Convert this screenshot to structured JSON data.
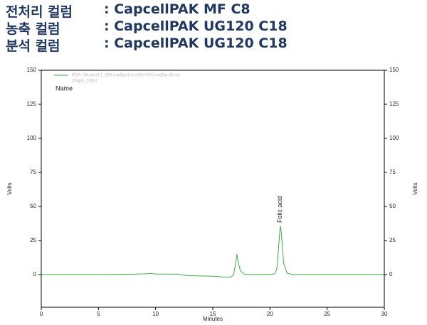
{
  "header": {
    "lines": [
      {
        "label": "전처리 컬럼",
        "value": ": CapcellPAK MF C8"
      },
      {
        "label": "농축 컬럼",
        "value": ": CapcellPAK UG120 C18"
      },
      {
        "label": "분석 컬럼",
        "value": ": CapcellPAK UG120 C18"
      }
    ]
  },
  "chart_data": {
    "type": "line",
    "xlabel": "Minutes",
    "ylabel": "Volts",
    "y2label": "Volts",
    "sample_label": "20ppb_160uL",
    "name_label": "Name",
    "annotations": [
      {
        "text": "Folic acid",
        "x": 20.9,
        "y": 38
      }
    ],
    "x": [
      0,
      2,
      4,
      6,
      8,
      9,
      9.5,
      10,
      12,
      12.5,
      13,
      14,
      15,
      15.5,
      16,
      16.5,
      16.8,
      17.0,
      17.1,
      17.2,
      17.4,
      17.7,
      18,
      19,
      20,
      20.4,
      20.6,
      20.8,
      20.9,
      21.0,
      21.2,
      21.5,
      22,
      24,
      26,
      28,
      30
    ],
    "series": [
      {
        "name": "PDA: Channel 1, 280 nm/Bw:8 nm Ref 350 nm/Bw:40 nm",
        "color": "#3cb043",
        "values": [
          0,
          0,
          0,
          0,
          0.3,
          0.5,
          0.8,
          0.4,
          0.3,
          -0.5,
          -0.8,
          -1,
          -1.2,
          -1.5,
          -2,
          -2,
          -0.5,
          8,
          15,
          10,
          3,
          0.5,
          0,
          0,
          0,
          0.5,
          4,
          25,
          36,
          30,
          8,
          1,
          0,
          0,
          0,
          0,
          0
        ]
      }
    ],
    "xlim": [
      0,
      30
    ],
    "xticks": [
      0,
      5,
      10,
      15,
      20,
      25,
      30
    ],
    "ylim": [
      -24,
      150
    ],
    "yticks": [
      0,
      25,
      50,
      75,
      100,
      125,
      150
    ],
    "y2lim": [
      -24,
      150
    ],
    "y2ticks": [
      0,
      25,
      50,
      75,
      100,
      125,
      150
    ]
  }
}
